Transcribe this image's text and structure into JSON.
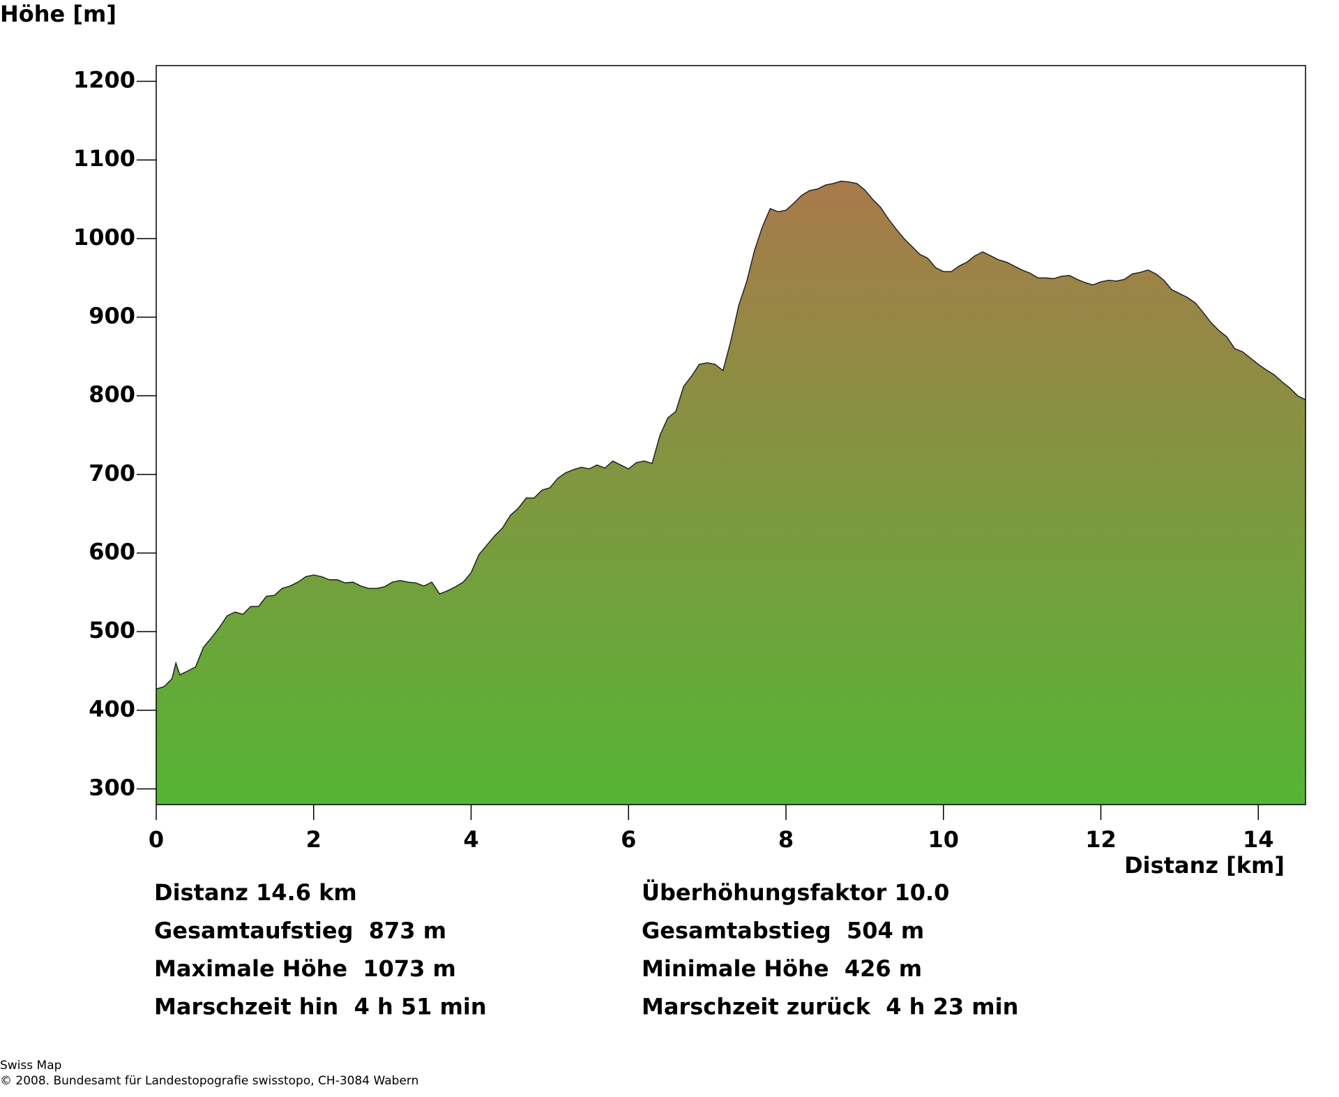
{
  "chart_data": {
    "type": "area",
    "y_label": "Höhe [m]",
    "x_label": "Distanz [km]",
    "x": [
      0,
      0.1,
      0.2,
      0.25,
      0.3,
      0.4,
      0.5,
      0.6,
      0.7,
      0.8,
      0.9,
      1.0,
      1.1,
      1.2,
      1.3,
      1.4,
      1.5,
      1.6,
      1.7,
      1.8,
      1.9,
      2.0,
      2.1,
      2.2,
      2.3,
      2.4,
      2.5,
      2.6,
      2.7,
      2.8,
      2.9,
      3.0,
      3.1,
      3.2,
      3.3,
      3.4,
      3.5,
      3.6,
      3.7,
      3.8,
      3.9,
      4.0,
      4.1,
      4.2,
      4.3,
      4.4,
      4.5,
      4.6,
      4.7,
      4.8,
      4.9,
      5.0,
      5.1,
      5.2,
      5.3,
      5.4,
      5.5,
      5.6,
      5.7,
      5.8,
      5.9,
      6.0,
      6.1,
      6.2,
      6.3,
      6.4,
      6.5,
      6.6,
      6.7,
      6.8,
      6.9,
      7.0,
      7.1,
      7.2,
      7.3,
      7.4,
      7.5,
      7.6,
      7.7,
      7.8,
      7.9,
      8.0,
      8.1,
      8.2,
      8.3,
      8.4,
      8.5,
      8.6,
      8.7,
      8.8,
      8.9,
      9.0,
      9.1,
      9.2,
      9.3,
      9.4,
      9.5,
      9.6,
      9.7,
      9.8,
      9.9,
      10.0,
      10.1,
      10.2,
      10.3,
      10.4,
      10.5,
      10.6,
      10.7,
      10.8,
      10.9,
      11.0,
      11.1,
      11.2,
      11.3,
      11.4,
      11.5,
      11.6,
      11.7,
      11.8,
      11.9,
      12.0,
      12.1,
      12.2,
      12.3,
      12.4,
      12.5,
      12.6,
      12.7,
      12.8,
      12.9,
      13.0,
      13.1,
      13.2,
      13.3,
      13.4,
      13.5,
      13.6,
      13.7,
      13.8,
      13.9,
      14.0,
      14.1,
      14.2,
      14.3,
      14.4,
      14.5,
      14.6
    ],
    "y": [
      427,
      430,
      440,
      460,
      445,
      450,
      455,
      480,
      492,
      505,
      520,
      525,
      522,
      532,
      532,
      545,
      546,
      555,
      558,
      563,
      570,
      572,
      570,
      566,
      566,
      562,
      563,
      558,
      555,
      555,
      557,
      563,
      565,
      563,
      562,
      558,
      563,
      548,
      552,
      557,
      563,
      575,
      598,
      610,
      622,
      632,
      648,
      657,
      670,
      670,
      680,
      683,
      695,
      702,
      706,
      709,
      707,
      712,
      708,
      717,
      712,
      707,
      715,
      717,
      714,
      750,
      772,
      780,
      812,
      825,
      840,
      842,
      840,
      832,
      870,
      915,
      945,
      985,
      1015,
      1038,
      1034,
      1036,
      1045,
      1055,
      1061,
      1063,
      1068,
      1070,
      1073,
      1072,
      1070,
      1062,
      1050,
      1040,
      1025,
      1012,
      1000,
      990,
      980,
      975,
      963,
      958,
      958,
      965,
      970,
      978,
      983,
      978,
      973,
      970,
      965,
      960,
      956,
      950,
      950,
      949,
      952,
      953,
      948,
      944,
      941,
      945,
      947,
      946,
      948,
      955,
      957,
      960,
      955,
      947,
      935,
      930,
      925,
      918,
      906,
      893,
      883,
      875,
      860,
      856,
      848,
      840,
      833,
      827,
      818,
      810,
      800,
      795
    ],
    "xlim": [
      0,
      14.6
    ],
    "ylim": [
      280,
      1220
    ],
    "xticks": [
      0,
      2,
      4,
      6,
      8,
      10,
      12,
      14
    ],
    "yticks": [
      300,
      400,
      500,
      600,
      700,
      800,
      900,
      1000,
      1100,
      1200
    ],
    "gradient": [
      "#a87a4a",
      "#55b534"
    ],
    "stats": [
      [
        "Distanz 14.6 km",
        "Überhöhungsfaktor 10.0"
      ],
      [
        "Gesamtaufstieg  873 m",
        "Gesamtabstieg  504 m"
      ],
      [
        "Maximale Höhe  1073 m",
        "Minimale Höhe  426 m"
      ],
      [
        "Marschzeit hin  4 h 51 min",
        "Marschzeit zurück  4 h 23 min"
      ]
    ]
  },
  "footer": [
    "Swiss Map",
    "© 2008. Bundesamt für Landestopografie swisstopo, CH-3084 Wabern"
  ]
}
